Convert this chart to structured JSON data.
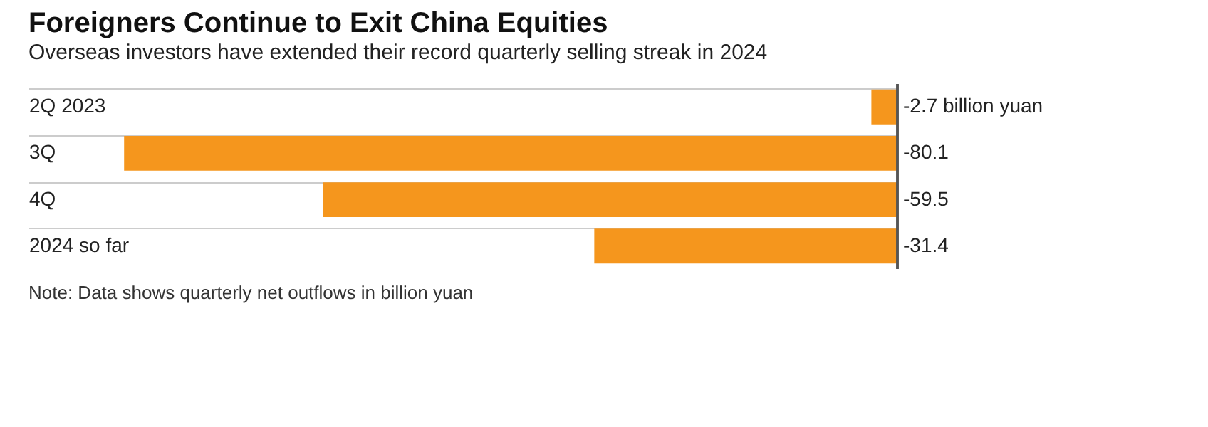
{
  "chart_data": {
    "type": "bar",
    "orientation": "horizontal",
    "title": "Foreigners Continue to Exit China Equities",
    "subtitle": "Overseas investors have extended their record quarterly selling streak in 2024",
    "categories": [
      "2Q 2023",
      "3Q",
      "4Q",
      "2024 so far"
    ],
    "values": [
      -2.7,
      -80.1,
      -59.5,
      -31.4
    ],
    "value_labels": [
      "-2.7 billion yuan",
      "-80.1",
      "-59.5",
      "-31.4"
    ],
    "color": "#f5961d",
    "grid": "y",
    "ref_lines": [
      {
        "axis": "x",
        "value": 0,
        "color": "#555555"
      }
    ],
    "annotations": [
      "Note: Data shows quarterly net outflows in billion yuan"
    ]
  }
}
